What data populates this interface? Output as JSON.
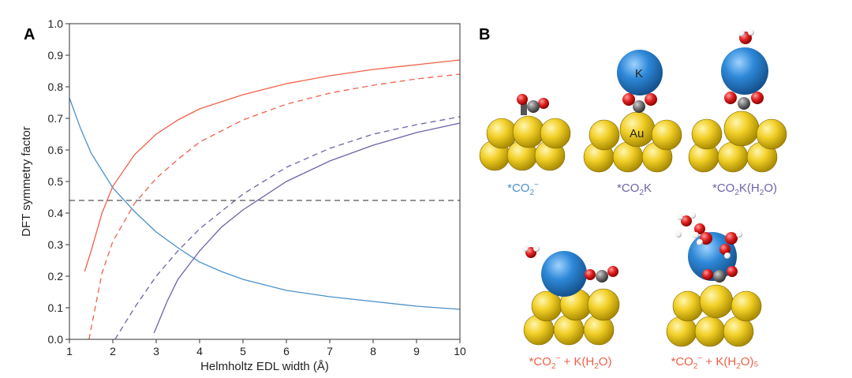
{
  "panel_a": {
    "letter": "A"
  },
  "panel_b": {
    "letter": "B",
    "captions": [
      {
        "text": "*CO2⁻",
        "main": "*CO",
        "sub1": "2",
        "sup": "−",
        "mid": "",
        "sub2": "",
        "tail": "",
        "color": "#4a90c8"
      },
      {
        "text": "*CO2K",
        "main": "*CO",
        "sub1": "2",
        "sup": "",
        "mid": "K",
        "sub2": "",
        "tail": "",
        "color": "#6f62a6"
      },
      {
        "text": "*CO2K(H2O)",
        "main": "*CO",
        "sub1": "2",
        "sup": "",
        "mid": "K(H",
        "sub2": "2",
        "tail": "O)",
        "color": "#6f62a6"
      },
      {
        "text": "*CO2⁻ + K(H2O)",
        "main": "*CO",
        "sub1": "2",
        "sup": "−",
        "mid": " + K(H",
        "sub2": "2",
        "tail": "O)",
        "color": "#f0604a"
      },
      {
        "text": "*CO2⁻ + K(H2O)5",
        "main": "*CO",
        "sub1": "2",
        "sup": "−",
        "mid": " + K(H",
        "sub2": "2",
        "tail": "O)₅",
        "color": "#f0604a"
      }
    ],
    "atom_labels": {
      "potassium": "K",
      "gold": "Au"
    },
    "colors": {
      "gold": "#f2d028",
      "potassium": "#2e88d8",
      "oxygen": "#e02020",
      "carbon": "#707070",
      "hydrogen": "#ffffff"
    }
  },
  "chart_data": {
    "type": "line",
    "xlabel": "Helmholtz EDL width (Å)",
    "ylabel": "DFT symmetry factor",
    "xlim": [
      1,
      10
    ],
    "ylim": [
      0,
      1
    ],
    "xticks": [
      "1",
      "2",
      "3",
      "4",
      "5",
      "6",
      "7",
      "8",
      "9",
      "10"
    ],
    "yticks": [
      "0.0",
      "0.1",
      "0.2",
      "0.3",
      "0.4",
      "0.5",
      "0.6",
      "0.7",
      "0.8",
      "0.9",
      "1.0"
    ],
    "grid": false,
    "legend": "none",
    "series": [
      {
        "color": "#4a90c8",
        "dash": false,
        "x": [
          1,
          1.25,
          1.5,
          2,
          2.5,
          3,
          3.5,
          4,
          4.5,
          5,
          6,
          7,
          8,
          9,
          10
        ],
        "y": [
          0.765,
          0.67,
          0.59,
          0.48,
          0.405,
          0.34,
          0.29,
          0.245,
          0.215,
          0.19,
          0.155,
          0.135,
          0.12,
          0.105,
          0.095
        ]
      },
      {
        "color": "#f0604a",
        "dash": false,
        "x": [
          1.35,
          1.5,
          1.75,
          2,
          2.5,
          3,
          3.5,
          4,
          5,
          6,
          7,
          8,
          9,
          10
        ],
        "y": [
          0.215,
          0.28,
          0.4,
          0.485,
          0.585,
          0.65,
          0.695,
          0.73,
          0.775,
          0.81,
          0.835,
          0.855,
          0.87,
          0.885
        ]
      },
      {
        "color": "#f0604a",
        "dash": true,
        "x": [
          1.45,
          1.75,
          2,
          2.5,
          3,
          3.5,
          4,
          5,
          6,
          7,
          8,
          9,
          10
        ],
        "y": [
          0.0,
          0.21,
          0.31,
          0.43,
          0.51,
          0.57,
          0.625,
          0.695,
          0.745,
          0.78,
          0.805,
          0.825,
          0.84
        ]
      },
      {
        "color": "#6f62a6",
        "dash": true,
        "x": [
          2.05,
          2.5,
          3,
          3.5,
          4,
          5,
          6,
          7,
          8,
          9,
          10
        ],
        "y": [
          0.0,
          0.1,
          0.2,
          0.28,
          0.35,
          0.46,
          0.545,
          0.605,
          0.65,
          0.68,
          0.705
        ]
      },
      {
        "color": "#6f62a6",
        "dash": false,
        "x": [
          2.95,
          3.25,
          3.5,
          4,
          4.5,
          5,
          6,
          7,
          8,
          9,
          10
        ],
        "y": [
          0.02,
          0.12,
          0.19,
          0.28,
          0.355,
          0.41,
          0.5,
          0.565,
          0.615,
          0.655,
          0.685
        ]
      },
      {
        "color": "#555555",
        "dash": true,
        "x": [
          1,
          10
        ],
        "y": [
          0.44,
          0.44
        ]
      }
    ]
  }
}
